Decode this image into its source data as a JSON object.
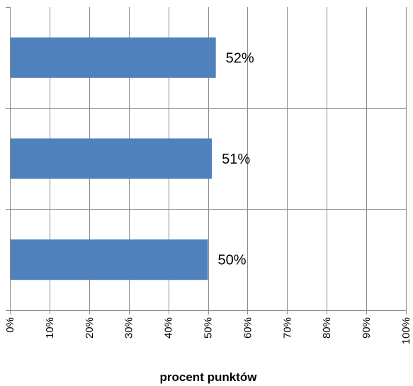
{
  "chart_data": {
    "type": "bar",
    "orientation": "horizontal",
    "categories": [
      "",
      "",
      ""
    ],
    "values": [
      52,
      51,
      50
    ],
    "data_labels": [
      "52%",
      "51%",
      "50%"
    ],
    "xlabel": "procent punktów",
    "ylabel": "",
    "xlim": [
      0,
      100
    ],
    "x_ticks": [
      0,
      10,
      20,
      30,
      40,
      50,
      60,
      70,
      80,
      90,
      100
    ],
    "x_tick_labels": [
      "0%",
      "10%",
      "20%",
      "30%",
      "40%",
      "50%",
      "60%",
      "70%",
      "80%",
      "90%",
      "100%"
    ],
    "grid": true,
    "legend": false,
    "colors": {
      "bar": "#4f81bd",
      "grid": "#8c8c8c",
      "axis": "#8c8c8c"
    }
  }
}
